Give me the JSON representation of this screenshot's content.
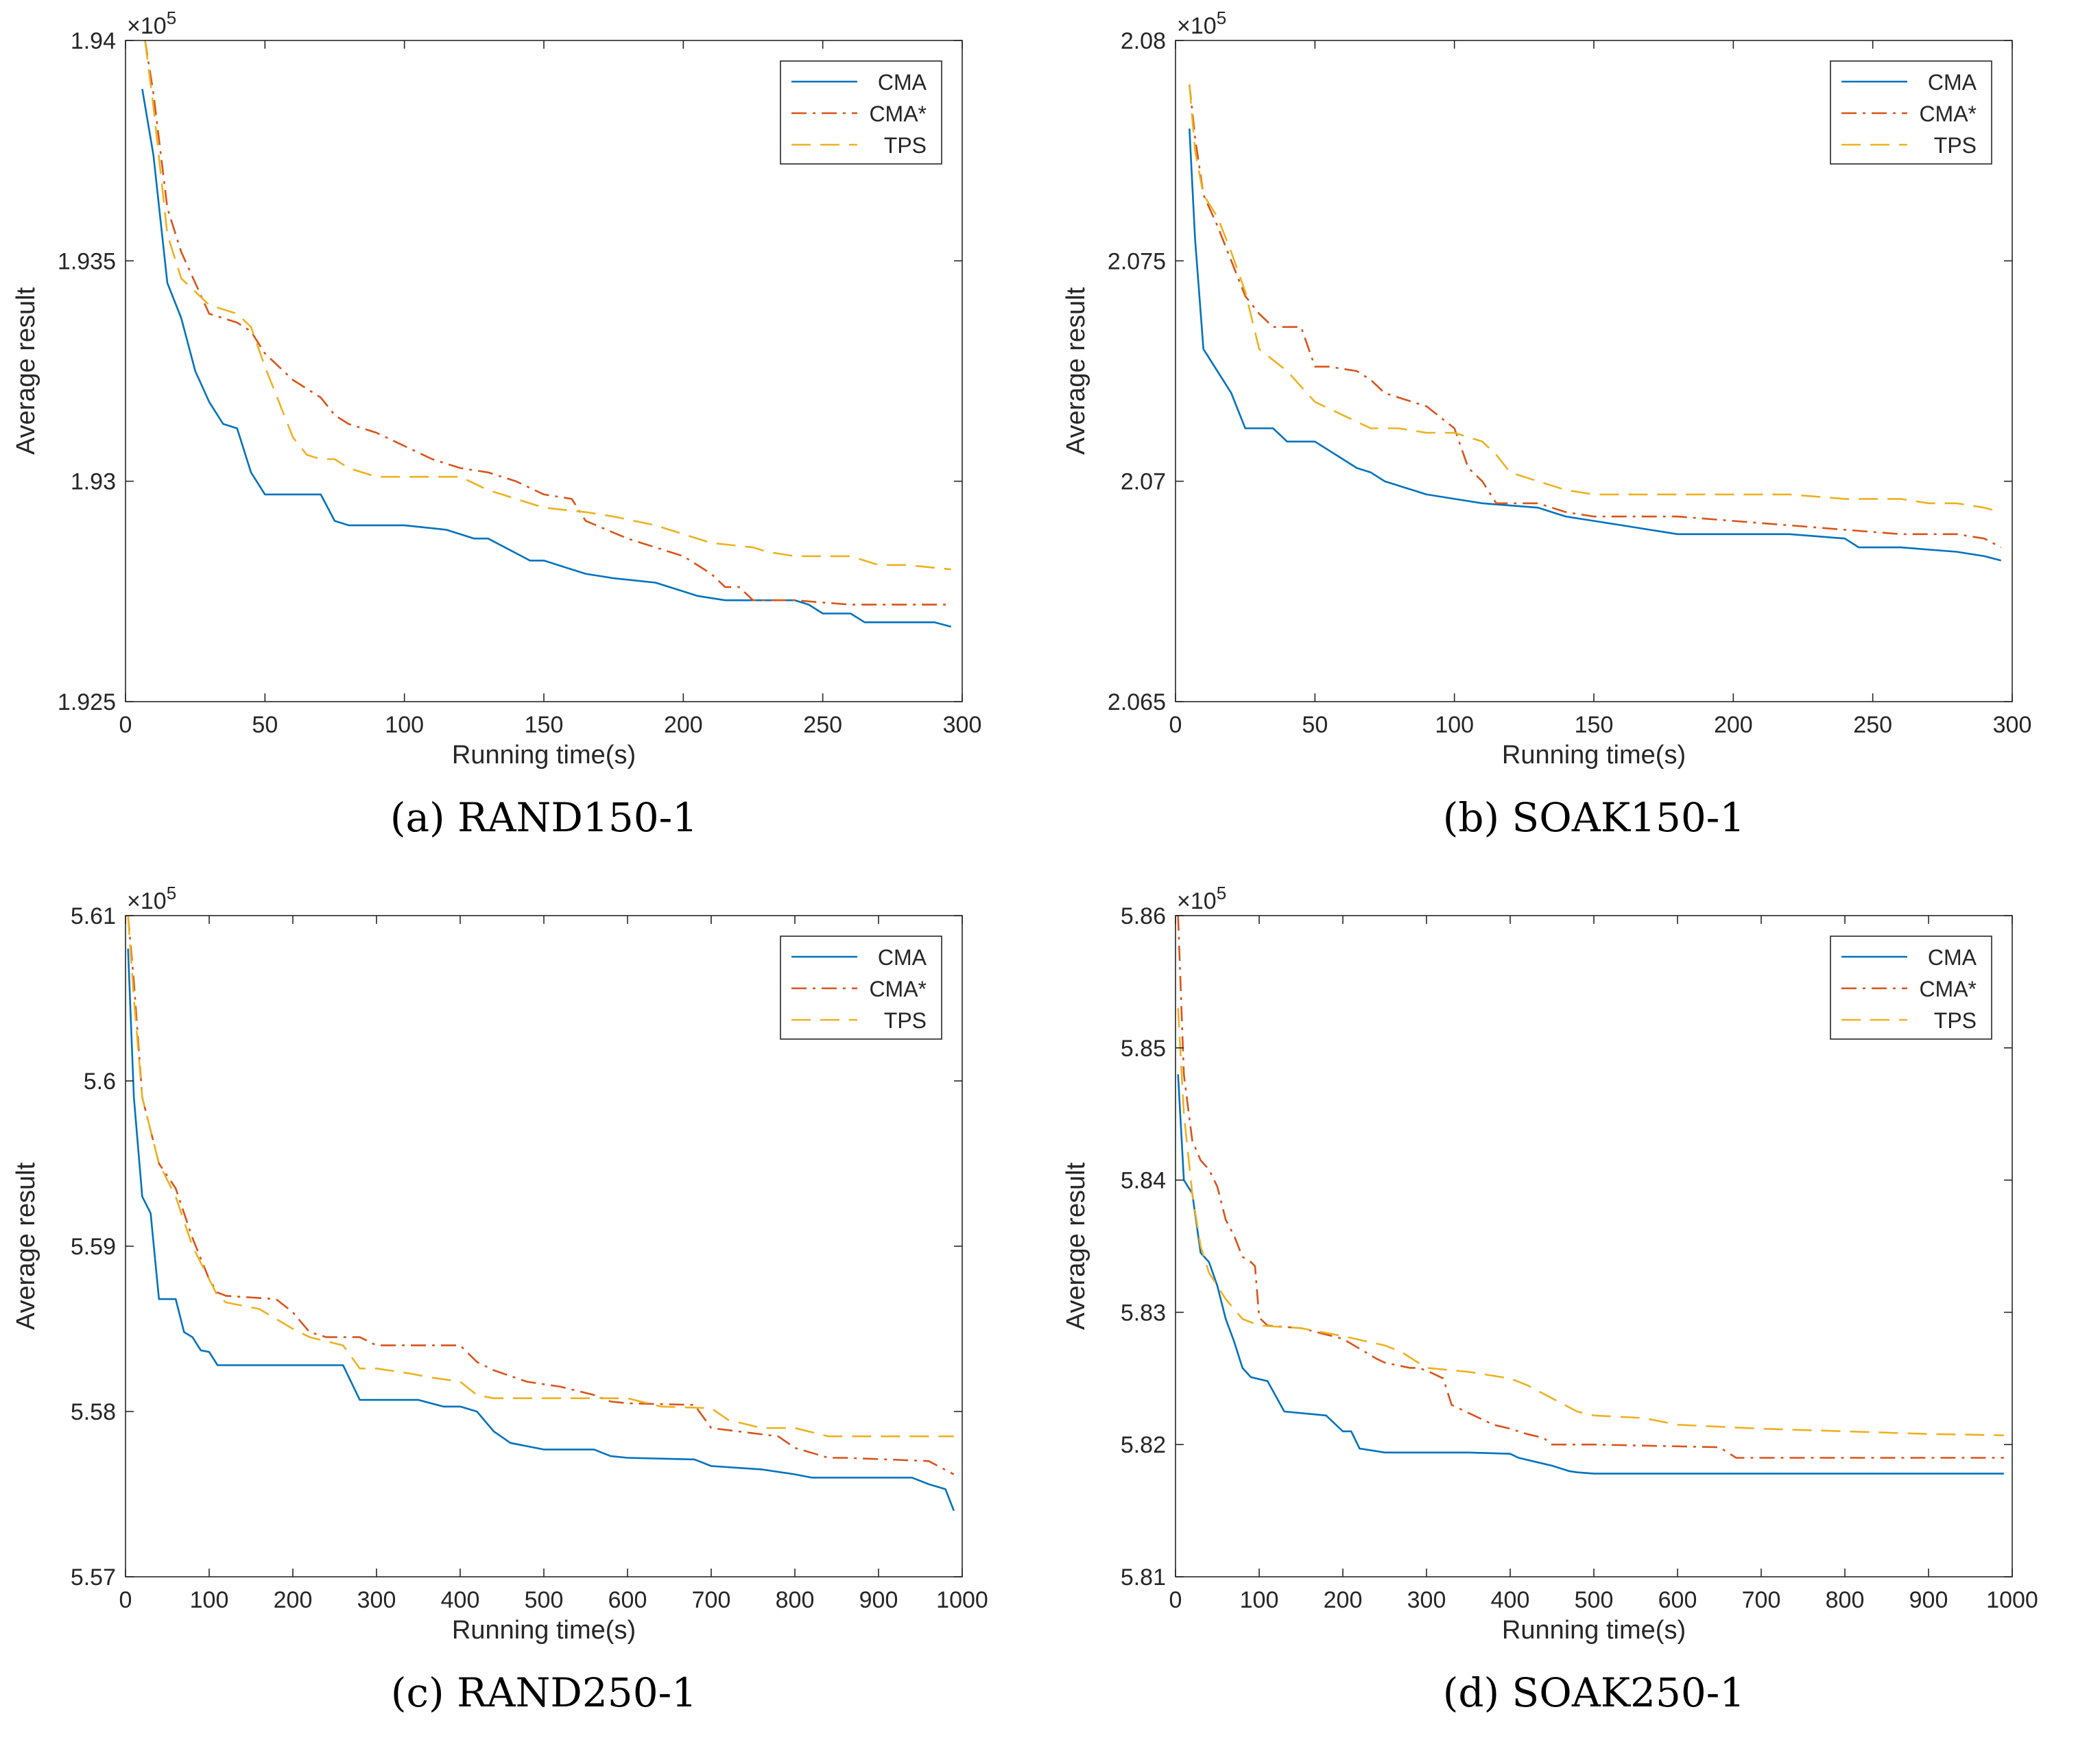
{
  "colors": {
    "CMA": "#0072BD",
    "CMA*": "#D95319",
    "TPS": "#EDB120",
    "axis": "#262626"
  },
  "chart_data": [
    {
      "type": "line",
      "caption": "(a)  RAND150-1",
      "xlabel": "Running time(s)",
      "ylabel": "Average result",
      "exponent_base": "×10",
      "exponent_power": "5",
      "xlim": [
        0,
        300
      ],
      "ylim": [
        1.925,
        1.94
      ],
      "xticks": [
        0,
        50,
        100,
        150,
        200,
        250,
        300
      ],
      "xtick_labels": [
        "0",
        "50",
        "100",
        "150",
        "200",
        "250",
        "300"
      ],
      "yticks": [
        1.925,
        1.93,
        1.935,
        1.94
      ],
      "ytick_labels": [
        "1.925",
        "1.93",
        "1.935",
        "1.94"
      ],
      "legend_position": "top-right",
      "series": [
        {
          "name": "CMA",
          "style": "solid",
          "x": [
            6,
            10,
            15,
            20,
            25,
            30,
            35,
            40,
            45,
            50,
            60,
            70,
            75,
            80,
            100,
            115,
            125,
            130,
            145,
            150,
            160,
            165,
            175,
            190,
            200,
            205,
            215,
            240,
            245,
            250,
            260,
            265,
            270,
            290,
            296
          ],
          "y": [
            1.9389,
            1.9374,
            1.9345,
            1.9337,
            1.9325,
            1.9318,
            1.9313,
            1.9312,
            1.9302,
            1.9297,
            1.9297,
            1.9297,
            1.9291,
            1.929,
            1.929,
            1.9289,
            1.9287,
            1.9287,
            1.9282,
            1.9282,
            1.928,
            1.9279,
            1.9278,
            1.9277,
            1.9275,
            1.9274,
            1.9273,
            1.9273,
            1.9272,
            1.927,
            1.927,
            1.9268,
            1.9268,
            1.9268,
            1.9267
          ]
        },
        {
          "name": "CMA*",
          "style": "dashdot",
          "x": [
            7,
            10,
            15,
            20,
            25,
            30,
            40,
            45,
            50,
            60,
            70,
            75,
            80,
            90,
            100,
            110,
            120,
            130,
            140,
            150,
            160,
            165,
            180,
            190,
            200,
            210,
            215,
            220,
            225,
            240,
            260,
            296
          ],
          "y": [
            1.94,
            1.9388,
            1.9362,
            1.9352,
            1.9345,
            1.9338,
            1.9336,
            1.9334,
            1.9329,
            1.9323,
            1.9319,
            1.9315,
            1.9313,
            1.9311,
            1.9308,
            1.9305,
            1.9303,
            1.9302,
            1.93,
            1.9297,
            1.9296,
            1.9291,
            1.9287,
            1.9285,
            1.9283,
            1.9279,
            1.9276,
            1.9276,
            1.9273,
            1.9273,
            1.9272,
            1.9272
          ]
        },
        {
          "name": "TPS",
          "style": "dashed",
          "x": [
            7,
            10,
            15,
            20,
            30,
            40,
            45,
            50,
            55,
            60,
            65,
            70,
            75,
            80,
            90,
            100,
            110,
            120,
            130,
            140,
            150,
            165,
            175,
            190,
            200,
            210,
            225,
            230,
            240,
            260,
            270,
            280,
            296
          ],
          "y": [
            1.94,
            1.9385,
            1.9356,
            1.9346,
            1.934,
            1.9338,
            1.9335,
            1.9326,
            1.9318,
            1.931,
            1.9306,
            1.9305,
            1.9305,
            1.9303,
            1.9301,
            1.9301,
            1.9301,
            1.9301,
            1.9298,
            1.9296,
            1.9294,
            1.9293,
            1.9292,
            1.929,
            1.9288,
            1.9286,
            1.9285,
            1.9284,
            1.9283,
            1.9283,
            1.9281,
            1.9281,
            1.928
          ]
        }
      ]
    },
    {
      "type": "line",
      "caption": "(b)  SOAK150-1",
      "xlabel": "Running time(s)",
      "ylabel": "Average result",
      "exponent_base": "×10",
      "exponent_power": "5",
      "xlim": [
        0,
        300
      ],
      "ylim": [
        2.065,
        2.08
      ],
      "xticks": [
        0,
        50,
        100,
        150,
        200,
        250,
        300
      ],
      "xtick_labels": [
        "0",
        "50",
        "100",
        "150",
        "200",
        "250",
        "300"
      ],
      "yticks": [
        2.065,
        2.07,
        2.075,
        2.08
      ],
      "ytick_labels": [
        "2.065",
        "2.07",
        "2.075",
        "2.08"
      ],
      "legend_position": "top-right",
      "series": [
        {
          "name": "CMA",
          "style": "solid",
          "x": [
            5,
            7,
            10,
            15,
            20,
            25,
            35,
            40,
            50,
            55,
            60,
            65,
            70,
            75,
            80,
            85,
            90,
            100,
            110,
            130,
            135,
            140,
            150,
            160,
            170,
            180,
            200,
            220,
            240,
            245,
            260,
            280,
            290,
            296
          ],
          "y": [
            2.078,
            2.0755,
            2.073,
            2.0725,
            2.072,
            2.0712,
            2.0712,
            2.0709,
            2.0709,
            2.0707,
            2.0705,
            2.0703,
            2.0702,
            2.07,
            2.0699,
            2.0698,
            2.0697,
            2.0696,
            2.0695,
            2.0694,
            2.0693,
            2.0692,
            2.0691,
            2.069,
            2.0689,
            2.0688,
            2.0688,
            2.0688,
            2.0687,
            2.0685,
            2.0685,
            2.0684,
            2.0683,
            2.0682
          ]
        },
        {
          "name": "CMA*",
          "style": "dashdot",
          "x": [
            5,
            7,
            10,
            15,
            20,
            25,
            30,
            35,
            45,
            50,
            55,
            65,
            70,
            75,
            80,
            90,
            100,
            105,
            110,
            115,
            130,
            140,
            150,
            180,
            200,
            220,
            240,
            260,
            280,
            290,
            296
          ],
          "y": [
            2.079,
            2.0778,
            2.0765,
            2.0758,
            2.075,
            2.0742,
            2.0738,
            2.0735,
            2.0735,
            2.0726,
            2.0726,
            2.0725,
            2.0723,
            2.072,
            2.0719,
            2.0717,
            2.0712,
            2.0703,
            2.07,
            2.0695,
            2.0695,
            2.0693,
            2.0692,
            2.0692,
            2.0691,
            2.069,
            2.0689,
            2.0688,
            2.0688,
            2.0687,
            2.0685
          ]
        },
        {
          "name": "TPS",
          "style": "dashed",
          "x": [
            5,
            7,
            10,
            15,
            20,
            25,
            30,
            40,
            50,
            60,
            70,
            80,
            90,
            100,
            110,
            115,
            120,
            130,
            140,
            150,
            160,
            180,
            200,
            220,
            240,
            260,
            270,
            280,
            290,
            296
          ],
          "y": [
            2.079,
            2.0775,
            2.0765,
            2.076,
            2.0752,
            2.0743,
            2.073,
            2.0725,
            2.0718,
            2.0715,
            2.0712,
            2.0712,
            2.0711,
            2.0711,
            2.0709,
            2.0706,
            2.0702,
            2.07,
            2.0698,
            2.0697,
            2.0697,
            2.0697,
            2.0697,
            2.0697,
            2.0696,
            2.0696,
            2.0695,
            2.0695,
            2.0694,
            2.0693
          ]
        }
      ]
    },
    {
      "type": "line",
      "caption": "(c)  RAND250-1",
      "xlabel": "Running time(s)",
      "ylabel": "Average result",
      "exponent_base": "×10",
      "exponent_power": "5",
      "xlim": [
        0,
        1000
      ],
      "ylim": [
        5.57,
        5.61
      ],
      "xticks": [
        0,
        100,
        200,
        300,
        400,
        500,
        600,
        700,
        800,
        900,
        1000
      ],
      "xtick_labels": [
        "0",
        "100",
        "200",
        "300",
        "400",
        "500",
        "600",
        "700",
        "800",
        "900",
        "1000"
      ],
      "yticks": [
        5.57,
        5.58,
        5.59,
        5.6,
        5.61
      ],
      "ytick_labels": [
        "5.57",
        "5.58",
        "5.59",
        "5.6",
        "5.61"
      ],
      "legend_position": "top-right",
      "series": [
        {
          "name": "CMA",
          "style": "solid",
          "x": [
            3,
            10,
            20,
            30,
            40,
            60,
            70,
            80,
            90,
            100,
            110,
            120,
            200,
            260,
            280,
            300,
            350,
            380,
            400,
            420,
            440,
            460,
            480,
            500,
            560,
            580,
            600,
            680,
            700,
            760,
            800,
            820,
            940,
            960,
            980,
            990
          ],
          "y": [
            5.608,
            5.599,
            5.593,
            5.592,
            5.5868,
            5.5868,
            5.5848,
            5.5845,
            5.5837,
            5.5836,
            5.5828,
            5.5828,
            5.5828,
            5.5828,
            5.5807,
            5.5807,
            5.5807,
            5.5803,
            5.5803,
            5.58,
            5.5788,
            5.5781,
            5.5779,
            5.5777,
            5.5777,
            5.5773,
            5.5772,
            5.5771,
            5.5767,
            5.5765,
            5.5762,
            5.576,
            5.576,
            5.5756,
            5.5753,
            5.574
          ]
        },
        {
          "name": "CMA*",
          "style": "dashdot",
          "x": [
            3,
            10,
            20,
            40,
            60,
            80,
            100,
            110,
            120,
            180,
            200,
            220,
            240,
            280,
            300,
            360,
            400,
            420,
            440,
            480,
            520,
            560,
            580,
            600,
            680,
            700,
            780,
            800,
            840,
            860,
            960,
            990
          ],
          "y": [
            5.61,
            5.606,
            5.599,
            5.595,
            5.5935,
            5.5905,
            5.588,
            5.5872,
            5.587,
            5.5868,
            5.586,
            5.5848,
            5.5845,
            5.5845,
            5.584,
            5.584,
            5.584,
            5.583,
            5.5825,
            5.5818,
            5.5815,
            5.581,
            5.5806,
            5.5805,
            5.5804,
            5.579,
            5.5785,
            5.5778,
            5.5772,
            5.5772,
            5.577,
            5.5762
          ]
        },
        {
          "name": "TPS",
          "style": "dashed",
          "x": [
            3,
            10,
            20,
            40,
            60,
            80,
            100,
            110,
            120,
            160,
            180,
            200,
            220,
            260,
            280,
            300,
            340,
            360,
            400,
            420,
            440,
            500,
            560,
            600,
            640,
            700,
            720,
            760,
            800,
            840,
            960,
            990
          ],
          "y": [
            5.61,
            5.605,
            5.599,
            5.595,
            5.593,
            5.59,
            5.588,
            5.587,
            5.5866,
            5.5862,
            5.5856,
            5.585,
            5.5845,
            5.584,
            5.5826,
            5.5826,
            5.5823,
            5.5821,
            5.5818,
            5.581,
            5.5808,
            5.5808,
            5.5808,
            5.5808,
            5.5803,
            5.5802,
            5.5795,
            5.579,
            5.579,
            5.5785,
            5.5785,
            5.5785
          ]
        }
      ]
    },
    {
      "type": "line",
      "caption": "(d)  SOAK250-1",
      "xlabel": "Running time(s)",
      "ylabel": "Average result",
      "exponent_base": "×10",
      "exponent_power": "5",
      "xlim": [
        0,
        1000
      ],
      "ylim": [
        5.81,
        5.86
      ],
      "xticks": [
        0,
        100,
        200,
        300,
        400,
        500,
        600,
        700,
        800,
        900,
        1000
      ],
      "xtick_labels": [
        "0",
        "100",
        "200",
        "300",
        "400",
        "500",
        "600",
        "700",
        "800",
        "900",
        "1000"
      ],
      "yticks": [
        5.81,
        5.82,
        5.83,
        5.84,
        5.85,
        5.86
      ],
      "ytick_labels": [
        "5.81",
        "5.82",
        "5.83",
        "5.84",
        "5.85",
        "5.86"
      ],
      "legend_position": "top-right",
      "series": [
        {
          "name": "CMA",
          "style": "solid",
          "x": [
            3,
            10,
            20,
            30,
            40,
            50,
            60,
            70,
            80,
            90,
            110,
            130,
            180,
            200,
            210,
            220,
            240,
            250,
            300,
            350,
            400,
            410,
            430,
            450,
            470,
            480,
            500,
            560,
            600,
            990
          ],
          "y": [
            5.848,
            5.84,
            5.839,
            5.8345,
            5.8338,
            5.832,
            5.8295,
            5.8278,
            5.8258,
            5.8251,
            5.8248,
            5.8225,
            5.8222,
            5.821,
            5.821,
            5.8197,
            5.8195,
            5.8194,
            5.8194,
            5.8194,
            5.8193,
            5.819,
            5.8187,
            5.8184,
            5.818,
            5.8179,
            5.8178,
            5.8178,
            5.8178,
            5.8178
          ]
        },
        {
          "name": "CMA*",
          "style": "dashdot",
          "x": [
            3,
            10,
            20,
            30,
            40,
            50,
            60,
            70,
            80,
            90,
            95,
            100,
            110,
            150,
            200,
            240,
            250,
            280,
            290,
            300,
            320,
            330,
            380,
            400,
            420,
            440,
            450,
            500,
            650,
            670,
            700,
            990
          ],
          "y": [
            5.86,
            5.848,
            5.843,
            5.8415,
            5.8408,
            5.8395,
            5.837,
            5.8358,
            5.8342,
            5.8338,
            5.8335,
            5.8296,
            5.829,
            5.8288,
            5.828,
            5.8265,
            5.8262,
            5.8258,
            5.8258,
            5.8256,
            5.825,
            5.823,
            5.8215,
            5.8212,
            5.8208,
            5.8205,
            5.82,
            5.82,
            5.8198,
            5.819,
            5.819,
            5.819
          ]
        },
        {
          "name": "TPS",
          "style": "dashed",
          "x": [
            3,
            10,
            20,
            30,
            40,
            60,
            80,
            100,
            150,
            200,
            250,
            270,
            300,
            350,
            400,
            420,
            450,
            480,
            500,
            560,
            600,
            700,
            800,
            900,
            990
          ],
          "y": [
            5.853,
            5.845,
            5.839,
            5.835,
            5.833,
            5.831,
            5.8295,
            5.829,
            5.8288,
            5.8282,
            5.8275,
            5.827,
            5.8258,
            5.8255,
            5.825,
            5.8245,
            5.8235,
            5.8225,
            5.8222,
            5.822,
            5.8215,
            5.8212,
            5.821,
            5.8208,
            5.8207
          ]
        }
      ]
    }
  ]
}
